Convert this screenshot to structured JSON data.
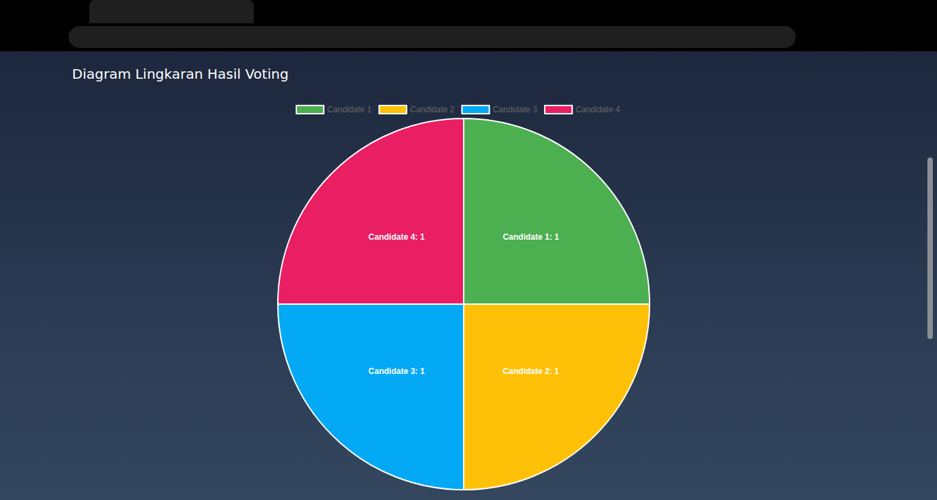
{
  "chart_data": {
    "type": "pie",
    "title": "Diagram Lingkaran Hasil Voting",
    "categories": [
      "Candidate 1",
      "Candidate 2",
      "Candidate 3",
      "Candidate 4"
    ],
    "values": [
      1,
      1,
      1,
      1
    ],
    "colors": [
      "#4caf50",
      "#ffc107",
      "#03a9f4",
      "#e91e63"
    ],
    "data_labels": true,
    "value_labels": [
      "Candidate 1: 1",
      "Candidate 2: 1",
      "Candidate 3: 1",
      "Candidate 4: 1"
    ],
    "legend": "top"
  }
}
